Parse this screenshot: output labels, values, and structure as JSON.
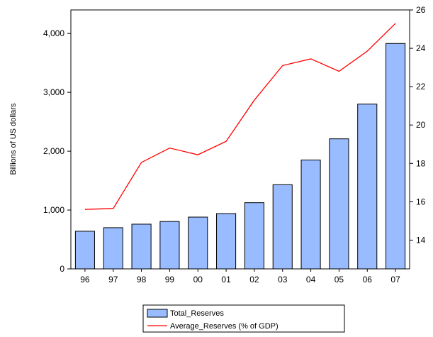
{
  "chart_data": {
    "type": "bar",
    "categories": [
      "96",
      "97",
      "98",
      "99",
      "00",
      "01",
      "02",
      "03",
      "04",
      "05",
      "06",
      "07"
    ],
    "series": [
      {
        "name": "Total_Reserves",
        "type": "bar",
        "axis": "left",
        "color": "#99bbff",
        "values": [
          640,
          700,
          760,
          805,
          880,
          940,
          1125,
          1430,
          1850,
          2210,
          2800,
          3830
        ]
      },
      {
        "name": "Average_Reserves (% of GDP)",
        "type": "line",
        "axis": "right",
        "color": "#ff0000",
        "values": [
          15.6,
          15.65,
          18.05,
          18.8,
          18.45,
          19.15,
          21.3,
          23.1,
          23.45,
          22.8,
          23.85,
          25.3
        ]
      }
    ],
    "ylabel": "Billions of US dollars",
    "ylim": [
      0,
      4400
    ],
    "yticks": [
      0,
      1000,
      2000,
      3000,
      4000
    ],
    "ytick_labels": [
      "0",
      "1,000",
      "2,000",
      "3,000",
      "4,000"
    ],
    "y2lim": [
      12.5,
      26
    ],
    "y2ticks": [
      14,
      16,
      18,
      20,
      22,
      24,
      26
    ],
    "grid": false,
    "legend": "bottom-center"
  }
}
